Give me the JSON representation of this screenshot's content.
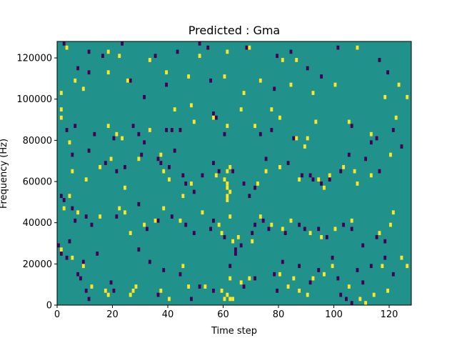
{
  "chart_data": {
    "type": "heatmap",
    "title": "Predicted : Gma",
    "xlabel": "Time step",
    "ylabel": "Frequency (Hz)",
    "xlim": [
      0,
      128
    ],
    "ylim": [
      0,
      128000
    ],
    "x_ticks": [
      "0",
      "20",
      "40",
      "60",
      "80",
      "100",
      "120"
    ],
    "y_ticks": [
      "0",
      "20000",
      "40000",
      "60000",
      "80000",
      "100000",
      "120000"
    ],
    "colors": {
      "background": "#21918c",
      "low": "#440154",
      "high": "#fde725"
    },
    "cell_height_hz": 2000,
    "cell_width_steps": 1,
    "high_cells": [
      [
        3,
        126000
      ],
      [
        18,
        124000
      ],
      [
        22,
        122000
      ],
      [
        33,
        120000
      ],
      [
        51,
        122000
      ],
      [
        61,
        124000
      ],
      [
        69,
        126000
      ],
      [
        81,
        120000
      ],
      [
        86,
        120000
      ],
      [
        108,
        126000
      ],
      [
        1,
        104000
      ],
      [
        6,
        110000
      ],
      [
        9,
        106000
      ],
      [
        18,
        114000
      ],
      [
        25,
        110000
      ],
      [
        39,
        114000
      ],
      [
        47,
        112000
      ],
      [
        60,
        112000
      ],
      [
        67,
        104000
      ],
      [
        73,
        110000
      ],
      [
        84,
        108000
      ],
      [
        92,
        104000
      ],
      [
        100,
        108000
      ],
      [
        118,
        102000
      ],
      [
        123,
        108000
      ],
      [
        126,
        102000
      ],
      [
        1,
        96000
      ],
      [
        1,
        92000
      ],
      [
        18,
        88000
      ],
      [
        21,
        84000
      ],
      [
        23,
        82000
      ],
      [
        33,
        86000
      ],
      [
        42,
        96000
      ],
      [
        48,
        98000
      ],
      [
        49,
        90000
      ],
      [
        56,
        92000
      ],
      [
        61,
        88000
      ],
      [
        66,
        96000
      ],
      [
        71,
        88000
      ],
      [
        77,
        96000
      ],
      [
        80,
        92000
      ],
      [
        86,
        82000
      ],
      [
        93,
        90000
      ],
      [
        105,
        90000
      ],
      [
        113,
        84000
      ],
      [
        122,
        92000
      ],
      [
        4,
        80000
      ],
      [
        5,
        66000
      ],
      [
        10,
        62000
      ],
      [
        15,
        68000
      ],
      [
        19,
        72000
      ],
      [
        24,
        58000
      ],
      [
        29,
        72000
      ],
      [
        37,
        74000
      ],
      [
        38,
        66000
      ],
      [
        40,
        62000
      ],
      [
        45,
        54000
      ],
      [
        48,
        60000
      ],
      [
        57,
        64000
      ],
      [
        61,
        66000
      ],
      [
        62,
        68000
      ],
      [
        60,
        62000
      ],
      [
        61,
        60000
      ],
      [
        61,
        58000
      ],
      [
        62,
        56000
      ],
      [
        61,
        54000
      ],
      [
        61,
        52000
      ],
      [
        72,
        60000
      ],
      [
        75,
        66000
      ],
      [
        80,
        68000
      ],
      [
        87,
        62000
      ],
      [
        89,
        78000
      ],
      [
        90,
        82000
      ],
      [
        94,
        62000
      ],
      [
        96,
        58000
      ],
      [
        98,
        64000
      ],
      [
        103,
        68000
      ],
      [
        107,
        66000
      ],
      [
        108,
        60000
      ],
      [
        113,
        64000
      ],
      [
        120,
        74000
      ],
      [
        2,
        48000
      ],
      [
        4,
        54000
      ],
      [
        7,
        46000
      ],
      [
        15,
        44000
      ],
      [
        22,
        48000
      ],
      [
        24,
        46000
      ],
      [
        26,
        36000
      ],
      [
        31,
        40000
      ],
      [
        35,
        42000
      ],
      [
        38,
        48000
      ],
      [
        44,
        42000
      ],
      [
        52,
        46000
      ],
      [
        58,
        40000
      ],
      [
        59,
        36000
      ],
      [
        62,
        44000
      ],
      [
        63,
        32000
      ],
      [
        65,
        34000
      ],
      [
        70,
        32000
      ],
      [
        73,
        44000
      ],
      [
        77,
        40000
      ],
      [
        81,
        38000
      ],
      [
        84,
        42000
      ],
      [
        91,
        36000
      ],
      [
        95,
        34000
      ],
      [
        100,
        38000
      ],
      [
        106,
        42000
      ],
      [
        116,
        36000
      ],
      [
        120,
        40000
      ],
      [
        121,
        46000
      ],
      [
        1,
        28000
      ],
      [
        5,
        24000
      ],
      [
        9,
        20000
      ],
      [
        12,
        10000
      ],
      [
        17,
        8000
      ],
      [
        18,
        6000
      ],
      [
        26,
        6000
      ],
      [
        27,
        8000
      ],
      [
        28,
        10000
      ],
      [
        37,
        8000
      ],
      [
        40,
        4000
      ],
      [
        45,
        20000
      ],
      [
        47,
        10000
      ],
      [
        53,
        10000
      ],
      [
        59,
        8000
      ],
      [
        60,
        4000
      ],
      [
        61,
        6000
      ],
      [
        62,
        4000
      ],
      [
        63,
        4000
      ],
      [
        62,
        14000
      ],
      [
        66,
        12000
      ],
      [
        69,
        14000
      ],
      [
        80,
        16000
      ],
      [
        83,
        10000
      ],
      [
        85,
        14000
      ],
      [
        87,
        8000
      ],
      [
        90,
        6000
      ],
      [
        92,
        14000
      ],
      [
        96,
        16000
      ],
      [
        99,
        20000
      ],
      [
        105,
        10000
      ],
      [
        109,
        4000
      ],
      [
        111,
        2000
      ],
      [
        114,
        6000
      ],
      [
        117,
        20000
      ],
      [
        119,
        8000
      ],
      [
        124,
        24000
      ],
      [
        126,
        20000
      ]
    ],
    "low_cells": [
      [
        2,
        128000
      ],
      [
        11,
        124000
      ],
      [
        16,
        122000
      ],
      [
        23,
        128000
      ],
      [
        35,
        122000
      ],
      [
        43,
        124000
      ],
      [
        51,
        128000
      ],
      [
        54,
        126000
      ],
      [
        68,
        126000
      ],
      [
        79,
        122000
      ],
      [
        84,
        124000
      ],
      [
        101,
        126000
      ],
      [
        116,
        120000
      ],
      [
        119,
        114000
      ],
      [
        7,
        116000
      ],
      [
        11,
        114000
      ],
      [
        26,
        110000
      ],
      [
        31,
        102000
      ],
      [
        39,
        108000
      ],
      [
        55,
        110000
      ],
      [
        78,
        106000
      ],
      [
        90,
        116000
      ],
      [
        95,
        112000
      ],
      [
        3,
        86000
      ],
      [
        6,
        88000
      ],
      [
        13,
        84000
      ],
      [
        20,
        82000
      ],
      [
        27,
        88000
      ],
      [
        29,
        84000
      ],
      [
        31,
        80000
      ],
      [
        39,
        86000
      ],
      [
        41,
        86000
      ],
      [
        44,
        86000
      ],
      [
        56,
        94000
      ],
      [
        57,
        92000
      ],
      [
        60,
        84000
      ],
      [
        73,
        84000
      ],
      [
        77,
        86000
      ],
      [
        85,
        82000
      ],
      [
        106,
        88000
      ],
      [
        113,
        80000
      ],
      [
        115,
        82000
      ],
      [
        121,
        86000
      ],
      [
        5,
        74000
      ],
      [
        11,
        76000
      ],
      [
        17,
        70000
      ],
      [
        21,
        66000
      ],
      [
        24,
        68000
      ],
      [
        30,
        74000
      ],
      [
        36,
        72000
      ],
      [
        37,
        70000
      ],
      [
        40,
        68000
      ],
      [
        42,
        76000
      ],
      [
        45,
        64000
      ],
      [
        46,
        60000
      ],
      [
        49,
        56000
      ],
      [
        52,
        64000
      ],
      [
        56,
        70000
      ],
      [
        58,
        66000
      ],
      [
        63,
        66000
      ],
      [
        67,
        60000
      ],
      [
        69,
        54000
      ],
      [
        71,
        58000
      ],
      [
        75,
        72000
      ],
      [
        83,
        70000
      ],
      [
        88,
        64000
      ],
      [
        91,
        64000
      ],
      [
        92,
        62000
      ],
      [
        95,
        60000
      ],
      [
        98,
        62000
      ],
      [
        102,
        66000
      ],
      [
        105,
        74000
      ],
      [
        111,
        72000
      ],
      [
        116,
        66000
      ],
      [
        124,
        78000
      ],
      [
        1,
        54000
      ],
      [
        2,
        52000
      ],
      [
        5,
        48000
      ],
      [
        6,
        42000
      ],
      [
        10,
        44000
      ],
      [
        12,
        40000
      ],
      [
        21,
        44000
      ],
      [
        29,
        50000
      ],
      [
        32,
        38000
      ],
      [
        36,
        42000
      ],
      [
        41,
        44000
      ],
      [
        46,
        40000
      ],
      [
        49,
        36000
      ],
      [
        55,
        38000
      ],
      [
        56,
        42000
      ],
      [
        60,
        34000
      ],
      [
        64,
        28000
      ],
      [
        66,
        30000
      ],
      [
        70,
        36000
      ],
      [
        71,
        40000
      ],
      [
        74,
        42000
      ],
      [
        76,
        38000
      ],
      [
        82,
        36000
      ],
      [
        87,
        40000
      ],
      [
        89,
        38000
      ],
      [
        94,
        38000
      ],
      [
        97,
        34000
      ],
      [
        103,
        40000
      ],
      [
        106,
        38000
      ],
      [
        110,
        30000
      ],
      [
        115,
        34000
      ],
      [
        118,
        32000
      ],
      [
        0,
        30000
      ],
      [
        1,
        26000
      ],
      [
        3,
        24000
      ],
      [
        4,
        32000
      ],
      [
        7,
        16000
      ],
      [
        8,
        14000
      ],
      [
        9,
        22000
      ],
      [
        10,
        8000
      ],
      [
        11,
        4000
      ],
      [
        14,
        26000
      ],
      [
        19,
        12000
      ],
      [
        20,
        8000
      ],
      [
        29,
        28000
      ],
      [
        33,
        22000
      ],
      [
        36,
        6000
      ],
      [
        38,
        18000
      ],
      [
        44,
        16000
      ],
      [
        48,
        4000
      ],
      [
        51,
        10000
      ],
      [
        56,
        8000
      ],
      [
        62,
        20000
      ],
      [
        64,
        26000
      ],
      [
        67,
        10000
      ],
      [
        71,
        14000
      ],
      [
        78,
        16000
      ],
      [
        79,
        8000
      ],
      [
        81,
        22000
      ],
      [
        87,
        20000
      ],
      [
        91,
        12000
      ],
      [
        94,
        18000
      ],
      [
        99,
        24000
      ],
      [
        101,
        14000
      ],
      [
        102,
        6000
      ],
      [
        104,
        4000
      ],
      [
        106,
        2000
      ],
      [
        108,
        18000
      ],
      [
        110,
        12000
      ],
      [
        113,
        20000
      ],
      [
        118,
        24000
      ],
      [
        121,
        16000
      ]
    ]
  }
}
